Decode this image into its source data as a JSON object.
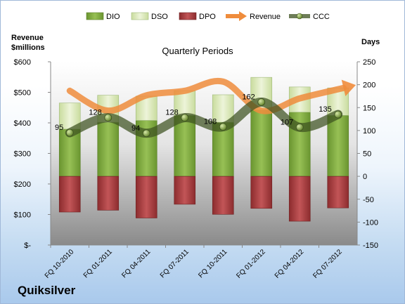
{
  "chart_data": {
    "type": "bar",
    "title": "Quarterly Periods",
    "company": "Quiksilver",
    "left_axis_label_line1": "Revenue",
    "left_axis_label_line2": "$millions",
    "right_axis_label": "Days",
    "categories": [
      "FQ 10-2010",
      "FQ 01-2011",
      "FQ 04-2011",
      "FQ 07-2011",
      "FQ 10-2011",
      "FQ 01-2012",
      "FQ 04-2012",
      "FQ 07-2012"
    ],
    "left_axis": {
      "min": 0,
      "max": 600,
      "step": 100,
      "tick_labels": [
        "$-",
        "$100",
        "$200",
        "$300",
        "$400",
        "$500",
        "$600"
      ]
    },
    "right_axis": {
      "min": -150,
      "max": 250,
      "step": 50,
      "tick_labels": [
        "-150",
        "-100",
        "-50",
        "0",
        "50",
        "100",
        "150",
        "200",
        "250"
      ]
    },
    "series": [
      {
        "name": "DIO",
        "axis": "right",
        "kind": "stacked-bar",
        "color": "#7aa33a",
        "values": [
          103,
          118,
          122,
          133,
          118,
          145,
          140,
          133
        ]
      },
      {
        "name": "DSO",
        "axis": "right",
        "kind": "stacked-bar",
        "color": "#dbe9b8",
        "values": [
          57,
          59,
          53,
          54,
          60,
          71,
          55,
          60
        ]
      },
      {
        "name": "DPO",
        "axis": "right",
        "kind": "negative-bar",
        "color": "#a8383a",
        "values": [
          -78,
          -74,
          -91,
          -61,
          -83,
          -70,
          -98,
          -69
        ]
      },
      {
        "name": "Revenue",
        "axis": "left",
        "kind": "line",
        "color": "#ef8c3c",
        "values": [
          505,
          440,
          490,
          505,
          535,
          440,
          480,
          510
        ]
      },
      {
        "name": "CCC",
        "axis": "right",
        "kind": "line",
        "color": "#556b2f",
        "values": [
          95,
          128,
          94,
          128,
          108,
          162,
          107,
          135
        ]
      }
    ],
    "ccc_labels": [
      "95",
      "128",
      "94",
      "128",
      "108",
      "162",
      "107",
      "135"
    ],
    "legend": {
      "position": "top"
    },
    "grid": false
  }
}
